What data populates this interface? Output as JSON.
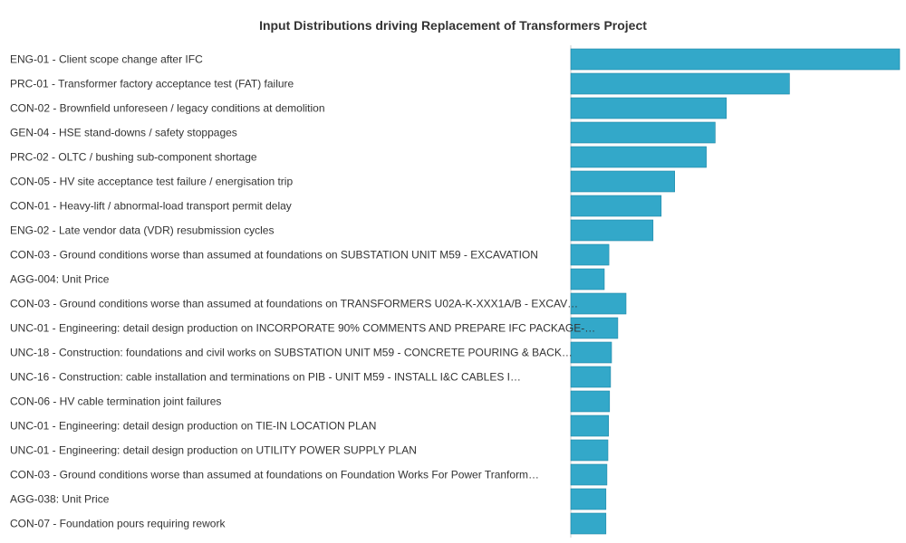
{
  "chart_data": {
    "type": "bar",
    "orientation": "horizontal",
    "title": "Input Distributions driving Replacement of Transformers Project",
    "bar_color": "#33a8c9",
    "bar_stroke": "#1f86a6",
    "axis_color": "#cccccc",
    "grid": false,
    "legend": "none",
    "xlim": [
      0,
      100
    ],
    "categories": [
      "ENG-01 - Client scope change after IFC",
      "PRC-01 - Transformer factory acceptance test (FAT) failure",
      "CON-02 - Brownfield unforeseen / legacy conditions at demolition",
      "GEN-04 - HSE stand-downs / safety stoppages",
      "PRC-02 - OLTC / bushing sub-component shortage",
      "CON-05 - HV site acceptance test failure / energisation trip",
      "CON-01 - Heavy-lift / abnormal-load transport permit delay",
      "ENG-02 - Late vendor data (VDR) resubmission cycles",
      "CON-03 - Ground conditions worse than assumed at foundations on SUBSTATION UNIT M59 - EXCAVATION",
      "AGG-004: Unit Price",
      "CON-03 - Ground conditions worse than assumed at foundations on TRANSFORMERS U02A-K-XXX1A/B - EXCAV…",
      "UNC-01 - Engineering: detail design production on INCORPORATE 90% COMMENTS AND PREPARE IFC PACKAGE-…",
      "UNC-18 - Construction: foundations and civil works on SUBSTATION UNIT M59 - CONCRETE POURING & BACK…",
      "UNC-16 - Construction: cable installation and terminations on PIB - UNIT M59 - INSTALL I&C CABLES I…",
      "CON-06 - HV cable termination joint failures",
      "UNC-01 - Engineering: detail design production on TIE-IN LOCATION PLAN",
      "UNC-01 - Engineering: detail design production on UTILITY POWER SUPPLY PLAN",
      "CON-03 - Ground conditions worse than assumed at foundations on Foundation Works For Power Tranform…",
      "AGG-038: Unit Price",
      "CON-07 - Foundation pours requiring rework"
    ],
    "values": [
      100,
      66.5,
      47.3,
      43.9,
      41.2,
      31.6,
      27.5,
      25.0,
      11.6,
      10.2,
      16.8,
      14.3,
      12.4,
      12.1,
      11.8,
      11.5,
      11.3,
      11.0,
      10.7,
      10.7
    ]
  }
}
